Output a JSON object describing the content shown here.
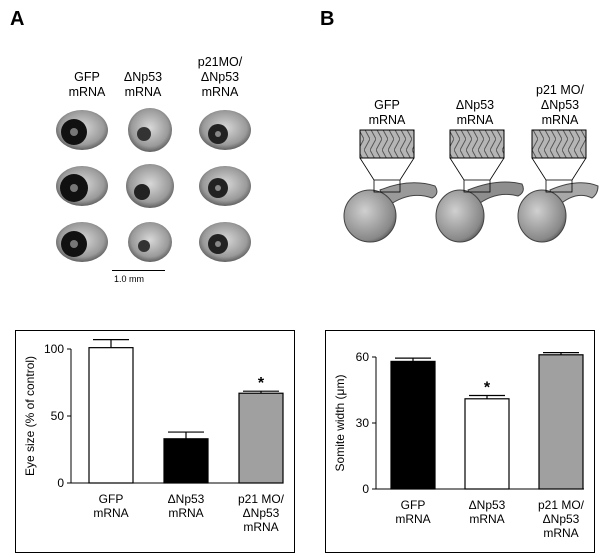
{
  "panel_a": {
    "letter": "A",
    "columns": [
      {
        "line1": "GFP",
        "line2": "mRNA",
        "line3": ""
      },
      {
        "line1": "ΔNp53",
        "line2": "mRNA",
        "line3": ""
      },
      {
        "line1": "p21MO/",
        "line2": "ΔNp53",
        "line3": "mRNA"
      }
    ],
    "scale_bar": "1.0 mm"
  },
  "panel_b": {
    "letter": "B",
    "columns": [
      {
        "line1": "GFP",
        "line2": "mRNA",
        "line3": ""
      },
      {
        "line1": "ΔNp53",
        "line2": "mRNA",
        "line3": ""
      },
      {
        "line1": "p21 MO/",
        "line2": "ΔNp53",
        "line3": "mRNA"
      }
    ]
  },
  "chart_data": [
    {
      "type": "bar",
      "ylabel": "Eye size (% of control)",
      "ylim": [
        0,
        100
      ],
      "yticks": [
        "0",
        "50",
        "100"
      ],
      "categories": [
        {
          "line1": "GFP",
          "line2": "mRNA",
          "line3": ""
        },
        {
          "line1": "ΔNp53",
          "line2": "mRNA",
          "line3": ""
        },
        {
          "line1": "p21 MO/",
          "line2": "ΔNp53",
          "line3": "mRNA"
        }
      ],
      "values": [
        101,
        33,
        67
      ],
      "errors": [
        6,
        5,
        1.5
      ],
      "colors": [
        "#ffffff",
        "#000000",
        "#a0a0a0"
      ],
      "significance": [
        "",
        "",
        "*"
      ]
    },
    {
      "type": "bar",
      "ylabel": "Somite width (μm)",
      "ylim": [
        0,
        60
      ],
      "yticks": [
        "0",
        "30",
        "60"
      ],
      "categories": [
        {
          "line1": "GFP",
          "line2": "mRNA",
          "line3": ""
        },
        {
          "line1": "ΔNp53",
          "line2": "mRNA",
          "line3": ""
        },
        {
          "line1": "p21 MO/",
          "line2": "ΔNp53",
          "line3": "mRNA"
        }
      ],
      "values": [
        58,
        41,
        61
      ],
      "errors": [
        1.5,
        1.5,
        1
      ],
      "colors": [
        "#000000",
        "#ffffff",
        "#a0a0a0"
      ],
      "significance": [
        "",
        "*",
        ""
      ]
    }
  ]
}
